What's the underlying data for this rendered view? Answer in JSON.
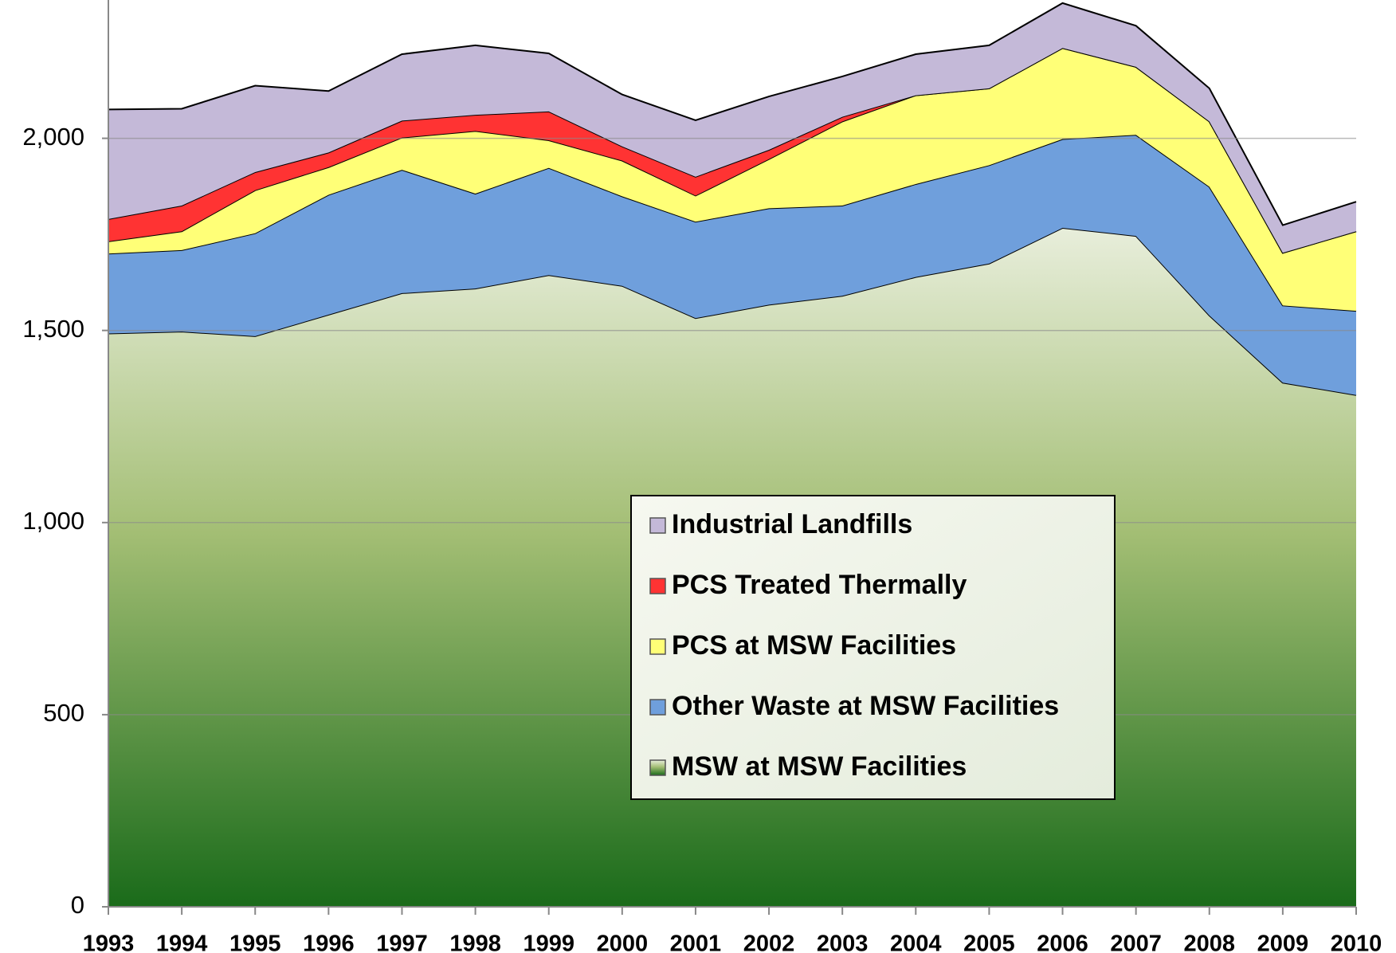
{
  "chart_data": {
    "type": "stacked-area",
    "x": [
      1993,
      1994,
      1995,
      1996,
      1997,
      1998,
      1999,
      2000,
      2001,
      2002,
      2003,
      2004,
      2005,
      2006,
      2007,
      2008,
      2009,
      2010
    ],
    "series": [
      {
        "name": "MSW at MSW Facilities",
        "color": "#1a6b1a",
        "values": [
          1492,
          1497,
          1485,
          1541,
          1597,
          1609,
          1644,
          1616,
          1532,
          1567,
          1590,
          1639,
          1674,
          1767,
          1746,
          1539,
          1364,
          1332
        ]
      },
      {
        "name": "Other Waste at MSW Facilities",
        "color": "#6f9fdc",
        "values": [
          208,
          212,
          268,
          312,
          321,
          247,
          279,
          233,
          251,
          251,
          235,
          242,
          256,
          231,
          263,
          335,
          201,
          219
        ]
      },
      {
        "name": "PCS at MSW Facilities",
        "color": "#ffff77",
        "values": [
          32,
          49,
          112,
          72,
          84,
          163,
          72,
          93,
          68,
          128,
          219,
          231,
          200,
          237,
          177,
          170,
          137,
          207
        ]
      },
      {
        "name": "PCS Treated Thermally",
        "color": "#ff3333",
        "values": [
          58,
          67,
          47,
          38,
          44,
          42,
          75,
          37,
          49,
          24,
          12,
          0,
          0,
          0,
          0,
          0,
          0,
          0
        ]
      },
      {
        "name": "Industrial Landfills",
        "color": "#c4b9d8",
        "values": [
          285,
          252,
          225,
          160,
          173,
          181,
          151,
          135,
          147,
          139,
          105,
          107,
          112,
          117,
          107,
          86,
          72,
          77
        ]
      }
    ],
    "ylim": [
      0,
      2360
    ],
    "yticks": [
      0,
      500,
      {
        "value": 1000,
        "label": "1,000"
      },
      {
        "value": 1500,
        "label": "1,500"
      },
      {
        "value": 2000,
        "label": "2,000"
      }
    ],
    "grid": true
  }
}
